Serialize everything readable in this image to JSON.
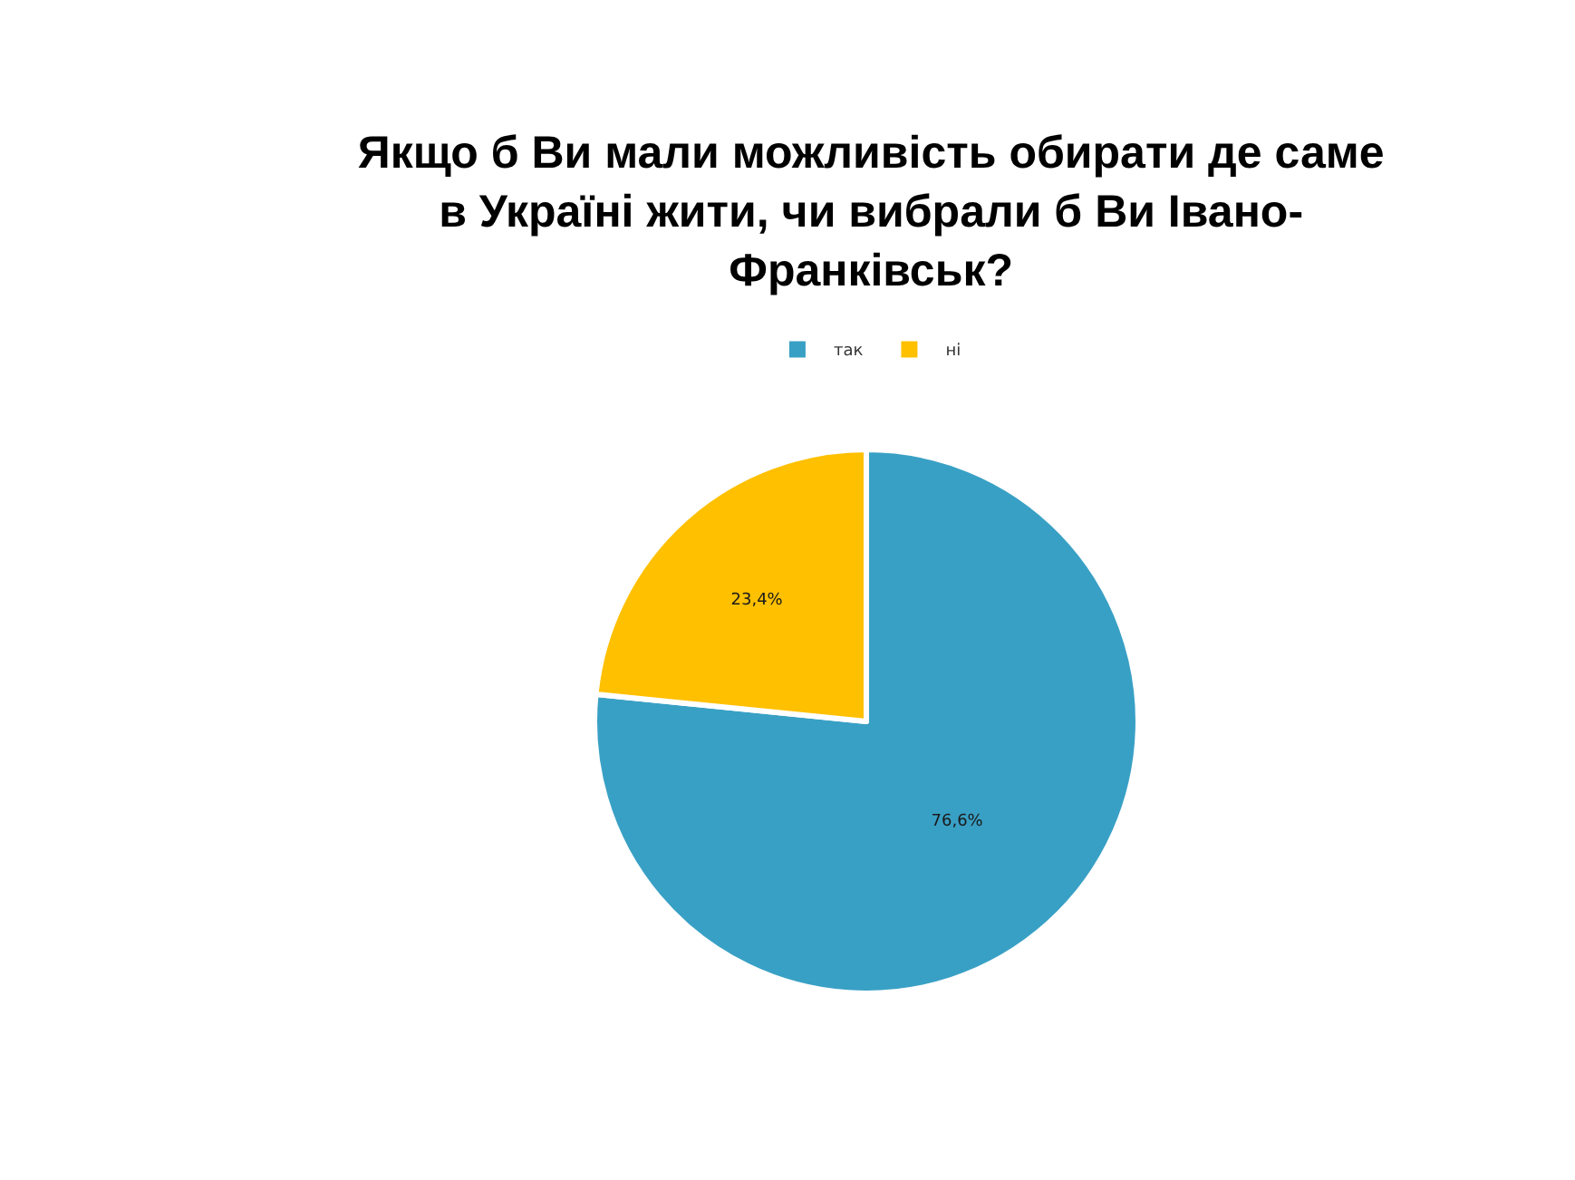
{
  "chart_data": {
    "type": "pie",
    "title": "Якщо б Ви мали можливість обирати де саме в Україні жити, чи вибрали б Ви Івано-Франківськ?",
    "categories": [
      "так",
      "ні"
    ],
    "values": [
      76.6,
      23.4
    ],
    "colors": [
      "#39a0c5",
      "#ffc000"
    ],
    "value_labels": [
      "76,6%",
      "23,4%"
    ],
    "legend": "top"
  }
}
